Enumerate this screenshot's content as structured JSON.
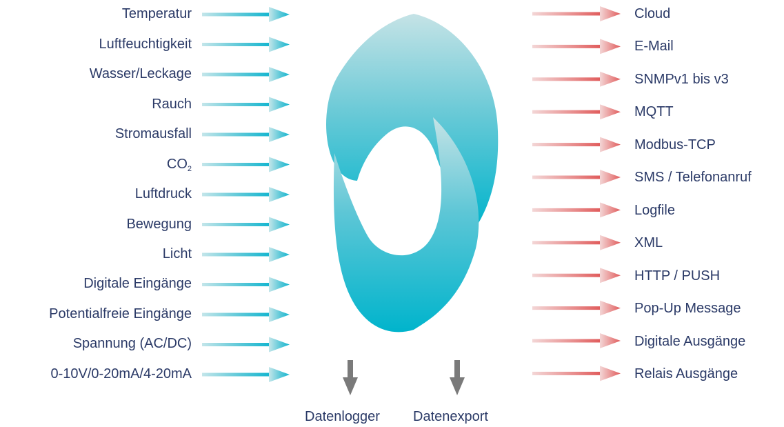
{
  "inputs": [
    "Temperatur",
    "Luftfeuchtigkeit",
    "Wasser/Leckage",
    "Rauch",
    "Stromausfall",
    "CO",
    "Luftdruck",
    "Bewegung",
    "Licht",
    "Digitale Eingänge",
    "Potentialfreie Eingänge",
    "Spannung (AC/DC)",
    "0-10V/0-20mA/4-20mA"
  ],
  "co2_subscript": "2",
  "outputs": [
    "Cloud",
    "E-Mail",
    "SNMPv1 bis v3",
    "MQTT",
    "Modbus-TCP",
    "SMS / Telefonanruf",
    "Logfile",
    "XML",
    "HTTP / PUSH",
    "Pop-Up Message",
    "Digitale Ausgänge",
    "Relais Ausgänge"
  ],
  "bottom": {
    "datenlogger": "Datenlogger",
    "datenexport": "Datenexport"
  },
  "colors": {
    "input_arrow": "#12b5cf",
    "output_arrow": "#e05a5a",
    "down_arrow": "#7a7a7a",
    "logo_light": "#b9dde1",
    "logo_dark": "#00b4cc",
    "text": "#2b3a67"
  },
  "icons": {
    "logo": "swirl-s-logo-icon",
    "input": "arrow-right-icon",
    "output": "arrow-right-icon",
    "down": "arrow-down-icon"
  }
}
